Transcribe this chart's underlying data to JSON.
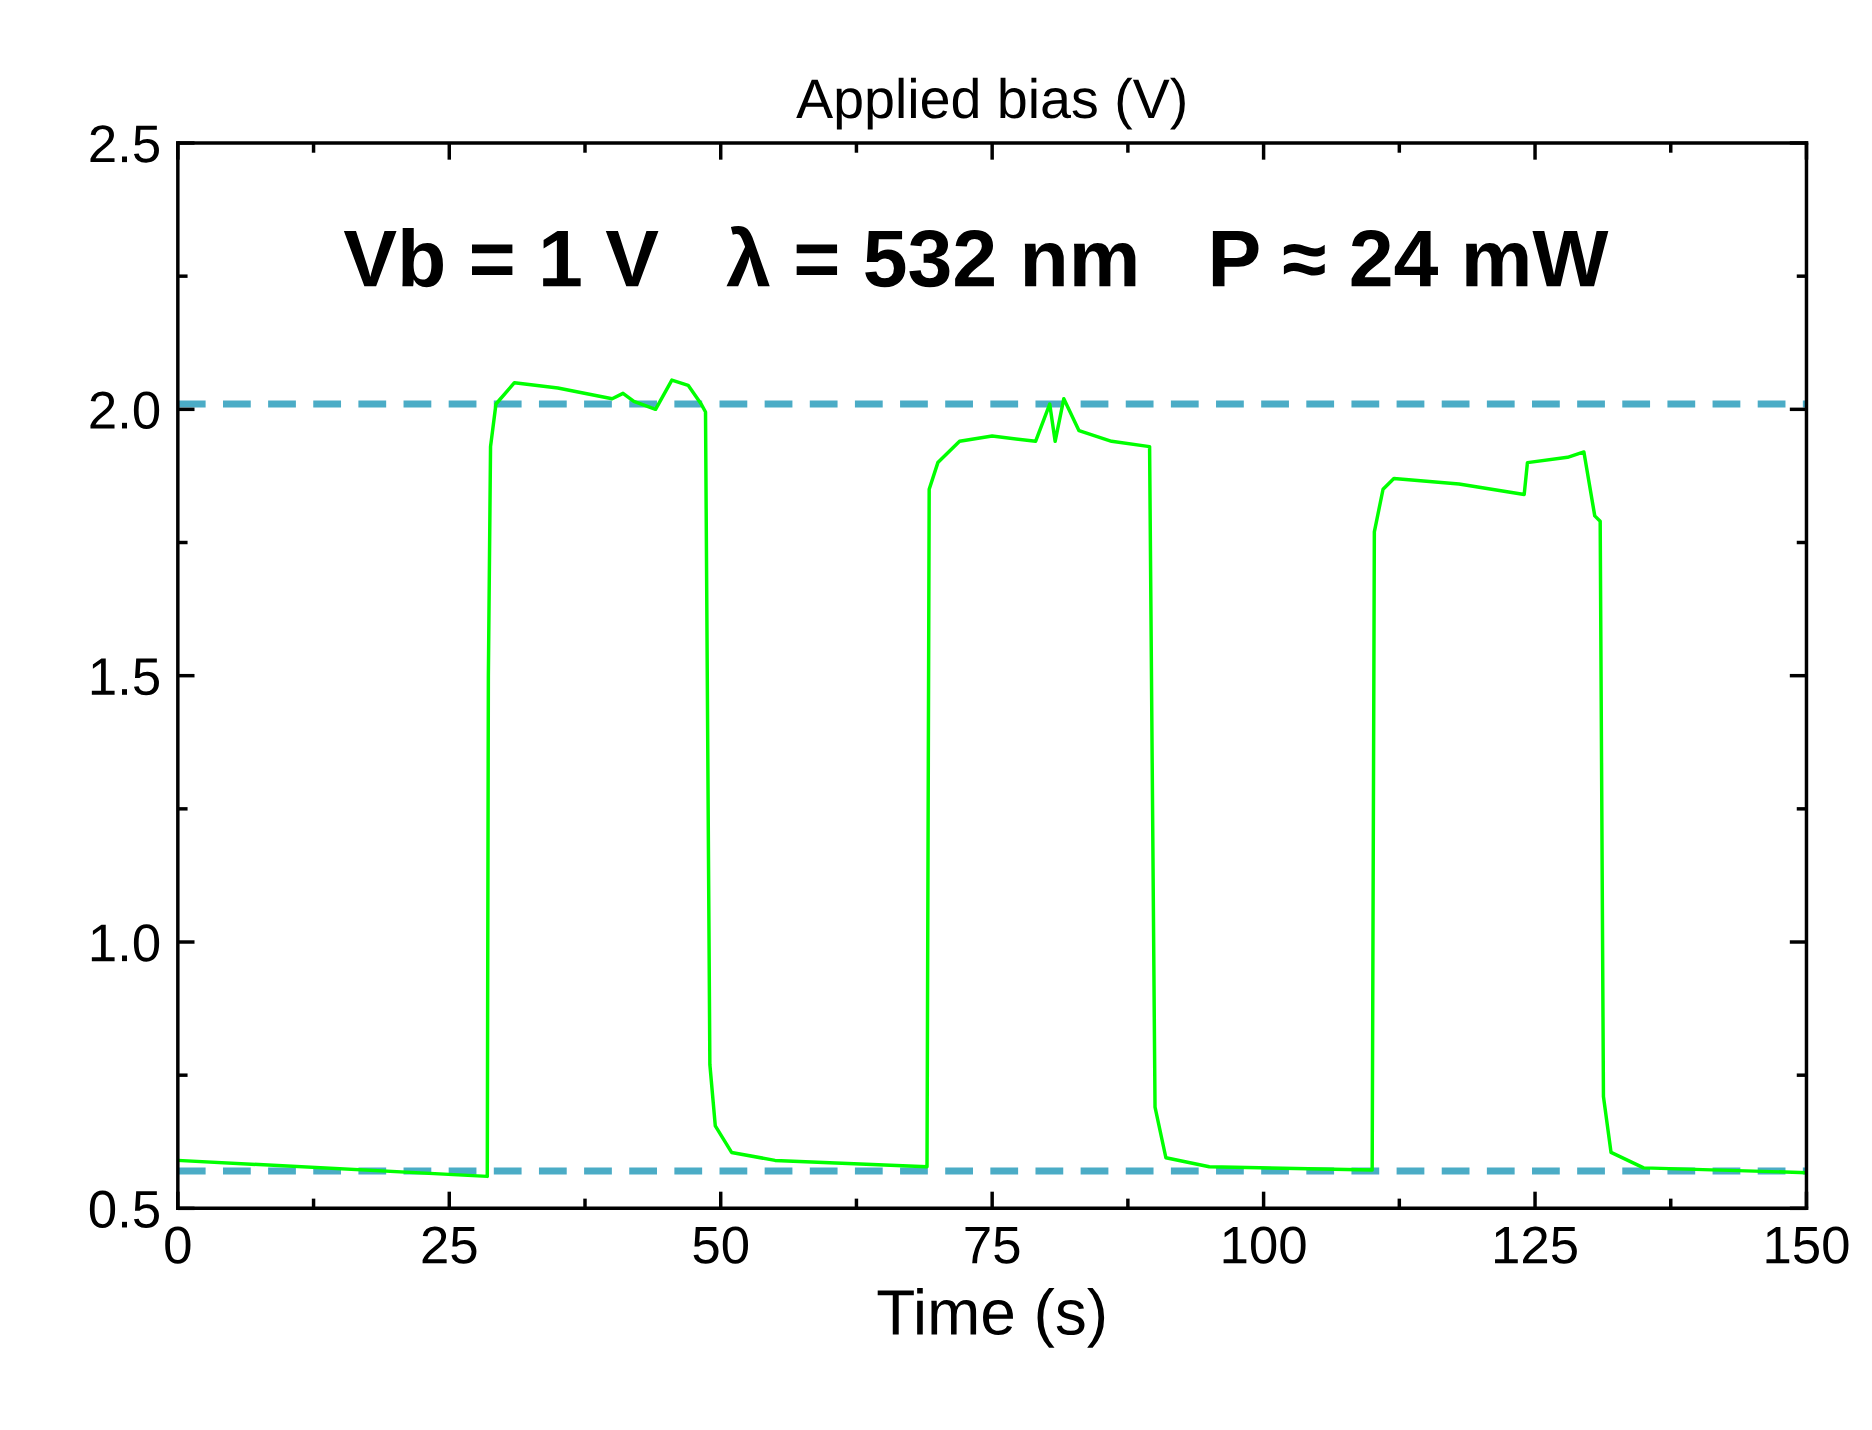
{
  "chart_data": {
    "type": "line",
    "title": "Applied bias (V)",
    "xlabel": "Time (s)",
    "annotations": [
      "Vb = 1 V   λ = 532 nm   P ≈ 24 mW"
    ],
    "series": [
      {
        "color": "#00ff00",
        "x": [
          0,
          28.5,
          28.6,
          28.8,
          29.3,
          31,
          35,
          40,
          41,
          42,
          44,
          45.5,
          47,
          48.2,
          48.6,
          49,
          49.5,
          51,
          55,
          69,
          69.2,
          70,
          72,
          75,
          79,
          80.3,
          80.8,
          81.6,
          83,
          86,
          89.5,
          90,
          91,
          95,
          110,
          110.2,
          111,
          112,
          118,
          124,
          124.3,
          128,
          129.5,
          130.5,
          131,
          131.3,
          132,
          135,
          150
        ],
        "values": [
          0.59,
          0.56,
          1.5,
          1.93,
          2.01,
          2.05,
          2.04,
          2.02,
          2.03,
          2.015,
          2.0,
          2.055,
          2.045,
          2.01,
          1.995,
          0.77,
          0.655,
          0.605,
          0.59,
          0.578,
          1.85,
          1.9,
          1.94,
          1.95,
          1.94,
          2.01,
          1.94,
          2.02,
          1.96,
          1.94,
          1.93,
          0.69,
          0.595,
          0.578,
          0.572,
          1.77,
          1.85,
          1.87,
          1.86,
          1.84,
          1.9,
          1.91,
          1.92,
          1.8,
          1.79,
          0.71,
          0.605,
          0.576,
          0.567
        ]
      }
    ],
    "ref_lines": [
      {
        "axis": "y",
        "value": 2.01,
        "color": "#4bacc6",
        "line_style": "dashed"
      },
      {
        "axis": "y",
        "value": 0.57,
        "color": "#4bacc6",
        "line_style": "dashed"
      }
    ],
    "xlim": [
      0,
      150
    ],
    "ylim": [
      0.5,
      2.5
    ],
    "xticks": [
      0,
      {
        "value": 12.5,
        "label": null
      },
      25,
      {
        "value": 37.5,
        "label": null
      },
      50,
      {
        "value": 62.5,
        "label": null
      },
      75,
      {
        "value": 87.5,
        "label": null
      },
      100,
      {
        "value": 112.5,
        "label": null
      },
      125,
      {
        "value": 137.5,
        "label": null
      },
      150
    ],
    "yticks": [
      0.5,
      {
        "value": 0.75,
        "label": null
      },
      {
        "value": 1.0,
        "label": "1.0"
      },
      {
        "value": 1.25,
        "label": null
      },
      1.5,
      {
        "value": 1.75,
        "label": null
      },
      {
        "value": 2.0,
        "label": "2.0"
      },
      {
        "value": 2.25,
        "label": null
      },
      2.5
    ],
    "marker": "none",
    "line_style": "solid"
  }
}
